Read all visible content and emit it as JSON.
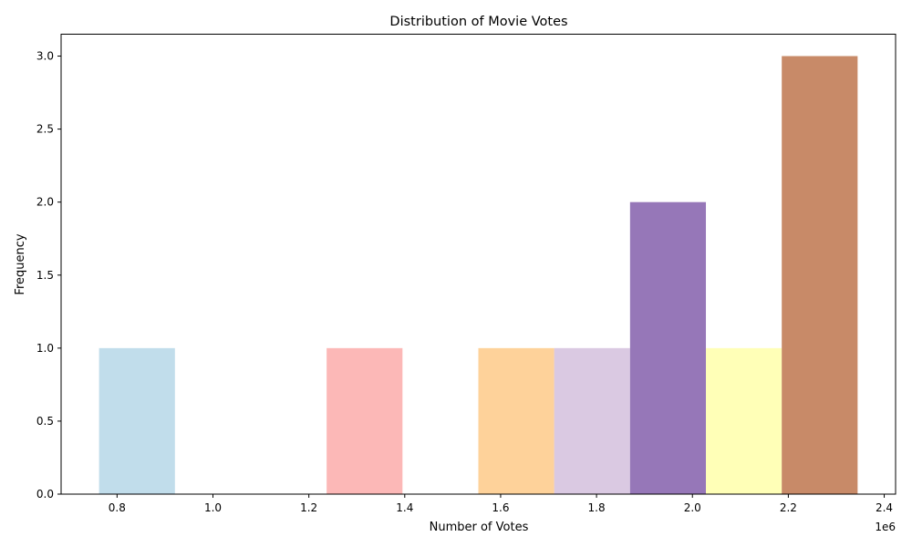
{
  "chart_data": {
    "type": "bar",
    "title": "Distribution of Movie Votes",
    "xlabel": "Number of Votes",
    "ylabel": "Frequency",
    "x_offset_label": "1e6",
    "bin_edges": [
      0.7625,
      0.9207,
      1.0789,
      1.2371,
      1.3953,
      1.5535,
      1.7117,
      1.8699,
      2.0281,
      2.1863,
      2.3445
    ],
    "values": [
      1,
      0,
      0,
      1,
      0,
      1,
      1,
      2,
      1,
      3
    ],
    "bar_colors": [
      "#a6cee3",
      "#1f78b4",
      "#b2df8a",
      "#fb9a99",
      "#e31a1c",
      "#fdbf6f",
      "#cab2d6",
      "#6a3d9a",
      "#ffff99",
      "#b15928"
    ],
    "bar_alpha": 0.7,
    "xlim": [
      0.6833,
      2.4237
    ],
    "ylim": [
      0,
      3.15
    ],
    "x_ticks": [
      "0.8",
      "1.0",
      "1.2",
      "1.4",
      "1.6",
      "1.8",
      "2.0",
      "2.2",
      "2.4"
    ],
    "y_ticks": [
      "0.0",
      "0.5",
      "1.0",
      "1.5",
      "2.0",
      "2.5",
      "3.0"
    ],
    "grid": false,
    "legend": "none"
  }
}
